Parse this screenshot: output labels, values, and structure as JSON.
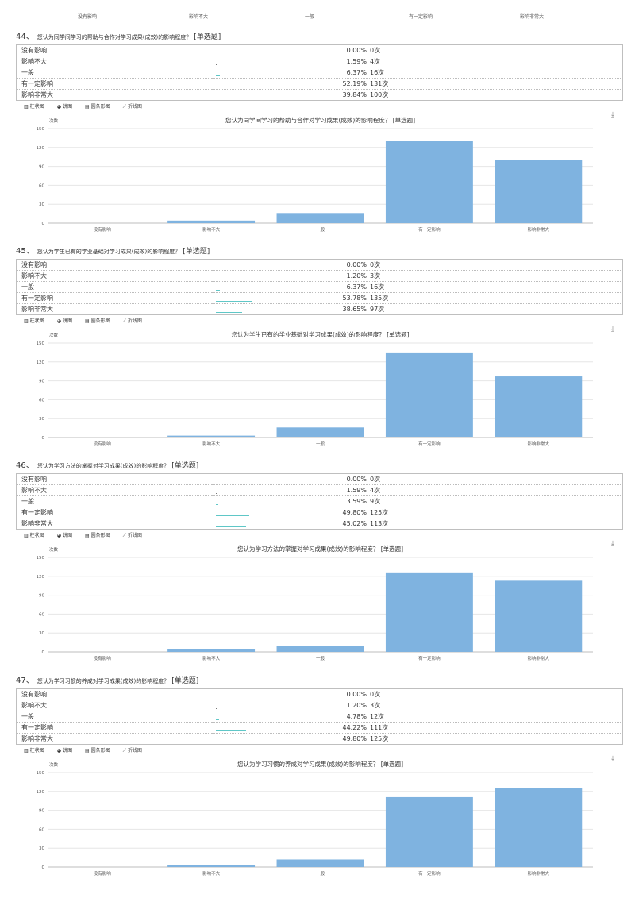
{
  "tabs": {
    "bar_label": "柱状图",
    "pie_label": "饼图",
    "hbar_label": "圆条形图",
    "line_label": "折线图",
    "bar_icon": "bar-chart-icon",
    "pie_icon": "pie-chart-icon",
    "hbar_icon": "horizontal-bar-icon",
    "line_icon": "line-chart-icon"
  },
  "y_axis_label": "次数",
  "y_ticks": [
    0,
    30,
    60,
    90,
    120,
    150
  ],
  "colors": {
    "bar": "#7fb3e0",
    "mini_bar": "#5fc7c7",
    "grid": "#e6e6e6"
  },
  "top_strip": {
    "labels": [
      "没有影响",
      "影响不大",
      "一般",
      "有一定影响",
      "影响非常大"
    ]
  },
  "questions": [
    {
      "number": "44、",
      "text": "您认为同学间学习的帮助与合作对学习成果(成效)的影响程度？",
      "tag": "[单选题]",
      "chart_title": "您认为同学间学习的帮助与合作对学习成果(成效)的影响程度？ [单选题]",
      "rows": [
        {
          "option": "没有影响",
          "percent": "0.00%",
          "count": "0次"
        },
        {
          "option": "影响不大",
          "percent": "1.59%",
          "count": "4次"
        },
        {
          "option": "一般",
          "percent": "6.37%",
          "count": "16次"
        },
        {
          "option": "有一定影响",
          "percent": "52.19%",
          "count": "131次"
        },
        {
          "option": "影响非常大",
          "percent": "39.84%",
          "count": "100次"
        }
      ]
    },
    {
      "number": "45、",
      "text": "您认为学生已有的学业基础对学习成果(成效)的影响程度？",
      "tag": "[单选题]",
      "chart_title": "您认为学生已有的学业基础对学习成果(成效)的影响程度？ [单选题]",
      "rows": [
        {
          "option": "没有影响",
          "percent": "0.00%",
          "count": "0次"
        },
        {
          "option": "影响不大",
          "percent": "1.20%",
          "count": "3次"
        },
        {
          "option": "一般",
          "percent": "6.37%",
          "count": "16次"
        },
        {
          "option": "有一定影响",
          "percent": "53.78%",
          "count": "135次"
        },
        {
          "option": "影响非常大",
          "percent": "38.65%",
          "count": "97次"
        }
      ]
    },
    {
      "number": "46、",
      "text": "您认为学习方法的掌握对学习成果(成效)的影响程度？",
      "tag": "[单选题]",
      "chart_title": "您认为学习方法的掌握对学习成果(成效)的影响程度？ [单选题]",
      "rows": [
        {
          "option": "没有影响",
          "percent": "0.00%",
          "count": "0次"
        },
        {
          "option": "影响不大",
          "percent": "1.59%",
          "count": "4次"
        },
        {
          "option": "一般",
          "percent": "3.59%",
          "count": "9次"
        },
        {
          "option": "有一定影响",
          "percent": "49.80%",
          "count": "125次"
        },
        {
          "option": "影响非常大",
          "percent": "45.02%",
          "count": "113次"
        }
      ]
    },
    {
      "number": "47、",
      "text": "您认为学习习惯的养成对学习成果(成效)的影响程度？",
      "tag": "[单选题]",
      "chart_title": "您认为学习习惯的养成对学习成果(成效)的影响程度？ [单选题]",
      "rows": [
        {
          "option": "没有影响",
          "percent": "0.00%",
          "count": "0次"
        },
        {
          "option": "影响不大",
          "percent": "1.20%",
          "count": "3次"
        },
        {
          "option": "一般",
          "percent": "4.78%",
          "count": "12次"
        },
        {
          "option": "有一定影响",
          "percent": "44.22%",
          "count": "111次"
        },
        {
          "option": "影响非常大",
          "percent": "49.80%",
          "count": "125次"
        }
      ]
    }
  ],
  "chart_data": [
    {
      "type": "bar",
      "title": "您认为同学间学习的帮助与合作对学习成果(成效)的影响程度？ [单选题]",
      "categories": [
        "没有影响",
        "影响不大",
        "一般",
        "有一定影响",
        "影响非常大"
      ],
      "values": [
        0,
        4,
        16,
        131,
        100
      ],
      "ylabel": "次数",
      "ylim": [
        0,
        150
      ],
      "grid": true
    },
    {
      "type": "bar",
      "title": "您认为学生已有的学业基础对学习成果(成效)的影响程度？ [单选题]",
      "categories": [
        "没有影响",
        "影响不大",
        "一般",
        "有一定影响",
        "影响非常大"
      ],
      "values": [
        0,
        3,
        16,
        135,
        97
      ],
      "ylabel": "次数",
      "ylim": [
        0,
        150
      ],
      "grid": true
    },
    {
      "type": "bar",
      "title": "您认为学习方法的掌握对学习成果(成效)的影响程度？ [单选题]",
      "categories": [
        "没有影响",
        "影响不大",
        "一般",
        "有一定影响",
        "影响非常大"
      ],
      "values": [
        0,
        4,
        9,
        125,
        113
      ],
      "ylabel": "次数",
      "ylim": [
        0,
        150
      ],
      "grid": true
    },
    {
      "type": "bar",
      "title": "您认为学习习惯的养成对学习成果(成效)的影响程度？ [单选题]",
      "categories": [
        "没有影响",
        "影响不大",
        "一般",
        "有一定影响",
        "影响非常大"
      ],
      "values": [
        0,
        3,
        12,
        111,
        125
      ],
      "ylabel": "次数",
      "ylim": [
        0,
        150
      ],
      "grid": true
    }
  ]
}
